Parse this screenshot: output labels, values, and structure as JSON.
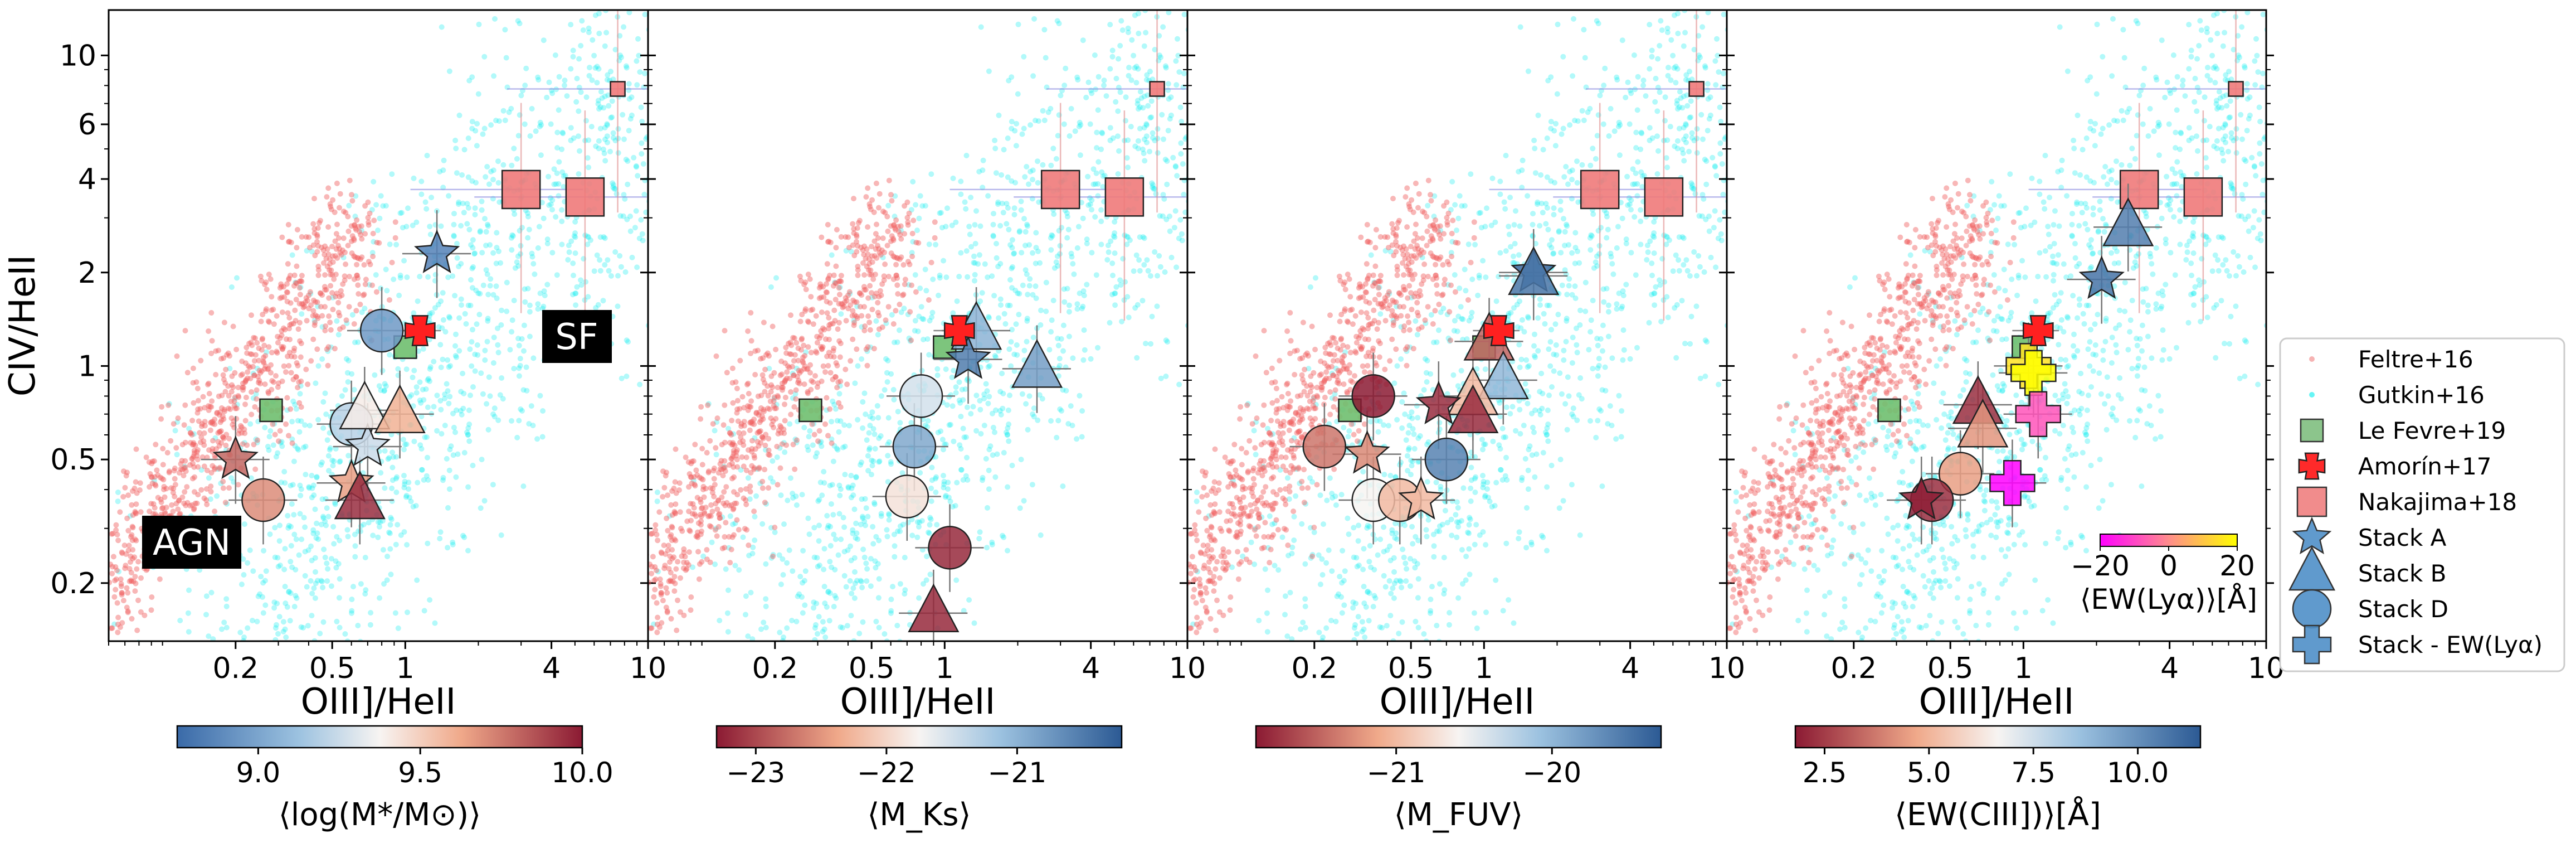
{
  "chart_data": {
    "type": "scatter",
    "figure": "CIV/HeII vs OIII]/HeII diagnostic diagram, four panels",
    "x_axis": {
      "label": "OIII]/HeII",
      "scale": "log",
      "range": [
        0.06,
        10
      ],
      "ticks": [
        0.2,
        0.5,
        1,
        4,
        10
      ],
      "tick_labels": [
        "0.2",
        "0.5",
        "1",
        "4",
        "10"
      ]
    },
    "y_axis": {
      "label": "CIV/HeII",
      "scale": "log",
      "range": [
        0.13,
        14
      ],
      "ticks": [
        0.2,
        0.5,
        1,
        2,
        4,
        6,
        10
      ],
      "tick_labels": [
        "0.2",
        "0.5",
        "1",
        "2",
        "4",
        "6",
        "10"
      ]
    },
    "region_labels": [
      "AGN",
      "SF"
    ],
    "reference_series": {
      "le_fevre": [
        {
          "x": 0.28,
          "y": 0.72
        },
        {
          "x": 1.0,
          "y": 1.15
        }
      ],
      "amorin": {
        "x": 1.15,
        "y": 1.3,
        "xerr": [
          0.9,
          1.4
        ],
        "yerr": [
          1.1,
          1.5
        ]
      },
      "nakajima": [
        {
          "x": 3.0,
          "y": 3.7,
          "size": "large"
        },
        {
          "x": 5.5,
          "y": 3.5,
          "size": "large"
        },
        {
          "x": 7.5,
          "y": 7.8,
          "size": "small"
        }
      ],
      "feltre_cloud": "red model grid, AGN locus",
      "gutkin_cloud": "cyan model grid, star-forming locus"
    },
    "panels": [
      {
        "colorbar": {
          "label": "⟨log(M*/M⊙)⟩",
          "range": [
            8.75,
            10.0
          ],
          "ticks": [
            "9.0",
            "9.5",
            "10.0"
          ],
          "cmap": "blue-white-red"
        },
        "points": [
          {
            "marker": "star",
            "x": 1.35,
            "y": 2.3,
            "c": 8.85
          },
          {
            "marker": "circle",
            "x": 0.8,
            "y": 1.3,
            "c": 8.95
          },
          {
            "marker": "circle",
            "x": 0.6,
            "y": 0.65,
            "c": 9.2
          },
          {
            "marker": "star",
            "x": 0.7,
            "y": 0.55,
            "c": 9.25
          },
          {
            "marker": "triangle",
            "x": 0.68,
            "y": 0.72,
            "c": 9.4
          },
          {
            "marker": "triangle",
            "x": 0.95,
            "y": 0.7,
            "c": 9.6
          },
          {
            "marker": "star",
            "x": 0.2,
            "y": 0.5,
            "c": 9.8
          },
          {
            "marker": "circle",
            "x": 0.26,
            "y": 0.37,
            "c": 9.7
          },
          {
            "marker": "star",
            "x": 0.6,
            "y": 0.42,
            "c": 9.65
          },
          {
            "marker": "triangle",
            "x": 0.65,
            "y": 0.37,
            "c": 9.95
          }
        ]
      },
      {
        "colorbar": {
          "label": "⟨M_Ks⟩",
          "range": [
            -23.3,
            -20.2
          ],
          "ticks": [
            "−23",
            "−22",
            "−21"
          ],
          "cmap": "red-white-blue"
        },
        "points": [
          {
            "marker": "triangle",
            "x": 1.35,
            "y": 1.3,
            "c": -21.0
          },
          {
            "marker": "star",
            "x": 1.25,
            "y": 1.05,
            "c": -20.5
          },
          {
            "marker": "triangle",
            "x": 2.4,
            "y": 0.98,
            "c": -20.8
          },
          {
            "marker": "circle",
            "x": 0.8,
            "y": 0.8,
            "c": -21.5
          },
          {
            "marker": "circle",
            "x": 0.75,
            "y": 0.55,
            "c": -20.9
          },
          {
            "marker": "circle",
            "x": 0.7,
            "y": 0.38,
            "c": -21.9
          },
          {
            "marker": "circle",
            "x": 1.05,
            "y": 0.26,
            "c": -23.2
          },
          {
            "marker": "triangle",
            "x": 0.9,
            "y": 0.16,
            "c": -23.2
          }
        ]
      },
      {
        "colorbar": {
          "label": "⟨M_FUV⟩",
          "range": [
            -21.9,
            -19.3
          ],
          "ticks": [
            "−21",
            "−20"
          ],
          "cmap": "red-white-blue"
        },
        "points": [
          {
            "marker": "star",
            "x": 1.6,
            "y": 2.0,
            "c": -19.4
          },
          {
            "marker": "triangle",
            "x": 1.6,
            "y": 1.95,
            "c": -19.5
          },
          {
            "marker": "triangle",
            "x": 1.05,
            "y": 1.2,
            "c": -21.5
          },
          {
            "marker": "triangle",
            "x": 1.2,
            "y": 0.9,
            "c": -20.0
          },
          {
            "marker": "triangle",
            "x": 0.9,
            "y": 0.8,
            "c": -21.0
          },
          {
            "marker": "triangle",
            "x": 0.9,
            "y": 0.7,
            "c": -21.8
          },
          {
            "marker": "star",
            "x": 0.65,
            "y": 0.75,
            "c": -21.8
          },
          {
            "marker": "circle",
            "x": 0.35,
            "y": 0.8,
            "c": -21.9
          },
          {
            "marker": "circle",
            "x": 0.22,
            "y": 0.55,
            "c": -21.4
          },
          {
            "marker": "star",
            "x": 0.33,
            "y": 0.52,
            "c": -21.3
          },
          {
            "marker": "circle",
            "x": 0.7,
            "y": 0.5,
            "c": -19.6
          },
          {
            "marker": "circle",
            "x": 0.35,
            "y": 0.37,
            "c": -20.6
          },
          {
            "marker": "circle",
            "x": 0.45,
            "y": 0.37,
            "c": -21.0
          },
          {
            "marker": "star",
            "x": 0.55,
            "y": 0.37,
            "c": -21.0
          }
        ]
      },
      {
        "colorbar": {
          "label": "⟨EW(CIII])⟩[Å]",
          "range": [
            1.8,
            11.5
          ],
          "ticks": [
            "2.5",
            "5.0",
            "7.5",
            "10.0"
          ],
          "cmap": "red-white-blue"
        },
        "inset_colorbar": {
          "label": "⟨EW(Lyα)⟩[Å]",
          "range": [
            -20,
            20
          ],
          "ticks": [
            "−20",
            "0",
            "20"
          ],
          "cmap": "magenta-yellow"
        },
        "points": [
          {
            "marker": "triangle",
            "x": 2.7,
            "y": 2.8,
            "c": 10.5
          },
          {
            "marker": "star",
            "x": 2.1,
            "y": 1.9,
            "c": 10.8
          },
          {
            "marker": "triangle",
            "x": 0.65,
            "y": 0.75,
            "c": 2.2
          },
          {
            "marker": "triangle",
            "x": 0.68,
            "y": 0.63,
            "c": 4.3
          },
          {
            "marker": "circle",
            "x": 0.55,
            "y": 0.45,
            "c": 4.5
          },
          {
            "marker": "circle",
            "x": 0.42,
            "y": 0.37,
            "c": 2.2
          },
          {
            "marker": "star",
            "x": 0.38,
            "y": 0.37,
            "c": 1.9
          },
          {
            "marker": "plus",
            "x": 1.05,
            "y": 1.0,
            "c_lya": 15
          },
          {
            "marker": "plus",
            "x": 1.1,
            "y": 0.95,
            "c_lya": 20
          },
          {
            "marker": "plus",
            "x": 1.15,
            "y": 0.7,
            "c_lya": -8
          },
          {
            "marker": "plus",
            "x": 0.9,
            "y": 0.42,
            "c_lya": -25
          }
        ]
      }
    ],
    "legend": {
      "position": "right",
      "entries": [
        {
          "label": "Feltre+16",
          "marker": "dot",
          "color": "#f08080"
        },
        {
          "label": "Gutkin+16",
          "marker": "dot",
          "color": "#00eeee"
        },
        {
          "label": "Le Fevre+19",
          "marker": "square",
          "color": "#7fbf7f"
        },
        {
          "label": "Amorín+17",
          "marker": "x",
          "color": "#ff2a2a"
        },
        {
          "label": "Nakajima+18",
          "marker": "square",
          "color": "#f08080"
        },
        {
          "label": "Stack A",
          "marker": "star",
          "color": "#4f8fc8"
        },
        {
          "label": "Stack B",
          "marker": "triangle",
          "color": "#4f8fc8"
        },
        {
          "label": "Stack D",
          "marker": "circle",
          "color": "#4f8fc8"
        },
        {
          "label": "Stack - EW(Lyα)",
          "marker": "plus",
          "color": "#4f8fc8"
        }
      ]
    },
    "colors": {
      "feltre": "#f06060",
      "gutkin": "#00eaf0",
      "le_fevre": "#6fbf6f",
      "amorin": "#ff2020",
      "nakajima": "#f07a7a"
    }
  }
}
